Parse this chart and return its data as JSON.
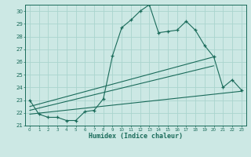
{
  "xlabel": "Humidex (Indice chaleur)",
  "background_color": "#cce8e4",
  "grid_color": "#aad4ce",
  "line_color": "#1a6b5a",
  "xlim": [
    -0.5,
    23.5
  ],
  "ylim": [
    21,
    30.5
  ],
  "yticks": [
    21,
    22,
    23,
    24,
    25,
    26,
    27,
    28,
    29,
    30
  ],
  "xticks": [
    0,
    1,
    2,
    3,
    4,
    5,
    6,
    7,
    8,
    9,
    10,
    11,
    12,
    13,
    14,
    15,
    16,
    17,
    18,
    19,
    20,
    21,
    22,
    23
  ],
  "series1": {
    "x": [
      0,
      1,
      2,
      3,
      4,
      5,
      6,
      7,
      8,
      9,
      10,
      11,
      12,
      13,
      14,
      15,
      16,
      17,
      18,
      19,
      20,
      21,
      22,
      23
    ],
    "y": [
      23.0,
      21.9,
      21.65,
      21.65,
      21.4,
      21.4,
      22.1,
      22.2,
      23.1,
      26.5,
      28.7,
      29.3,
      30.0,
      30.5,
      28.3,
      28.4,
      28.5,
      29.2,
      28.5,
      27.3,
      26.4,
      24.0,
      24.6,
      23.8
    ]
  },
  "series2": {
    "x": [
      0,
      20
    ],
    "y": [
      22.5,
      26.4
    ]
  },
  "series3": {
    "x": [
      0,
      20
    ],
    "y": [
      22.2,
      25.7
    ]
  },
  "series4": {
    "x": [
      0,
      23
    ],
    "y": [
      21.9,
      23.7
    ]
  }
}
